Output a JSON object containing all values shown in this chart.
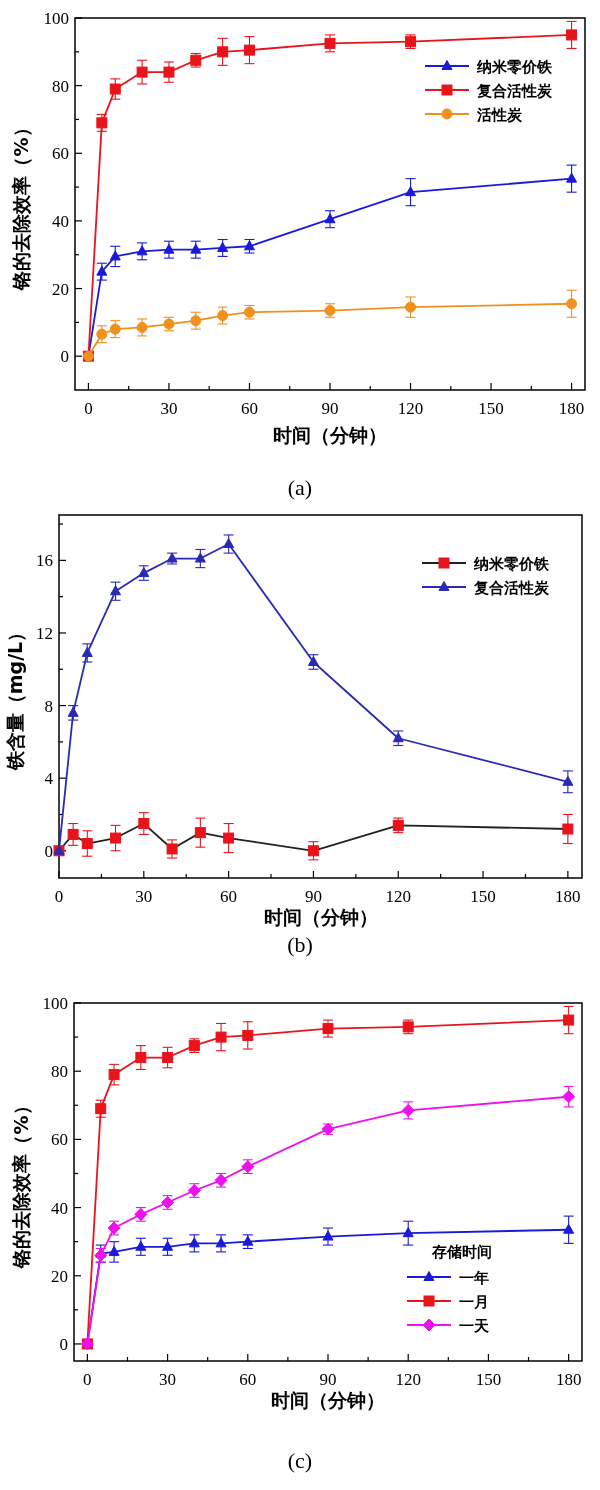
{
  "chart_data": [
    {
      "type": "line",
      "title": "(a)",
      "xlabel": "时间（分钟）",
      "ylabel": "铬的去除效率（%）",
      "x": [
        0,
        5,
        10,
        20,
        30,
        40,
        50,
        60,
        90,
        120,
        180
      ],
      "xlim": [
        -5,
        185
      ],
      "ylim": [
        -10,
        100
      ],
      "xticks": [
        0,
        {
          "value": 15,
          "label": null
        },
        30,
        {
          "value": 45,
          "label": null
        },
        60,
        {
          "value": 75,
          "label": null
        },
        90,
        {
          "value": 105,
          "label": null
        },
        120,
        {
          "value": 135,
          "label": null
        },
        150,
        {
          "value": 165,
          "label": null
        },
        180
      ],
      "yticks": [
        0,
        {
          "value": 10,
          "label": null
        },
        20,
        {
          "value": 30,
          "label": null
        },
        40,
        {
          "value": 50,
          "label": null
        },
        60,
        {
          "value": 70,
          "label": null
        },
        80,
        {
          "value": 90,
          "label": null
        },
        100
      ],
      "legend": "top right",
      "series": [
        {
          "name": "纳米零价铁",
          "color": "#1a1adb",
          "marker": "triangle",
          "values": [
            0,
            25,
            29.5,
            31,
            31.5,
            31.5,
            32,
            32.5,
            40.5,
            48.5,
            52.5
          ],
          "errors": [
            null,
            2.5,
            3,
            2.5,
            2.5,
            2.5,
            2.5,
            2,
            2.5,
            4,
            4
          ]
        },
        {
          "name": "复合活性炭",
          "color": "#e8141c",
          "marker": "square",
          "values": [
            0,
            69,
            79,
            84,
            84,
            87.5,
            90,
            90.5,
            92.5,
            93,
            95
          ],
          "errors": [
            null,
            2.5,
            3,
            3.5,
            3,
            2,
            4,
            4,
            2.5,
            2,
            4
          ]
        },
        {
          "name": "活性炭",
          "color": "#f0901e",
          "marker": "circle",
          "values": [
            0,
            6.5,
            8,
            8.5,
            9.5,
            10.5,
            12,
            13,
            13.5,
            14.5,
            15.5
          ],
          "errors": [
            null,
            2.5,
            2.5,
            2.5,
            2,
            2.5,
            2.5,
            2,
            2,
            3,
            4
          ]
        }
      ]
    },
    {
      "type": "line",
      "title": "(b)",
      "xlabel": "时间（分钟）",
      "ylabel": "铁含量（mg/L）",
      "x": [
        0,
        5,
        10,
        20,
        30,
        40,
        50,
        60,
        90,
        120,
        180
      ],
      "xlim": [
        0,
        185
      ],
      "ylim": [
        -1.5,
        18.5
      ],
      "xticks": [
        0,
        {
          "value": 15,
          "label": null
        },
        30,
        {
          "value": 45,
          "label": null
        },
        60,
        {
          "value": 75,
          "label": null
        },
        90,
        {
          "value": 105,
          "label": null
        },
        120,
        {
          "value": 135,
          "label": null
        },
        150,
        {
          "value": 165,
          "label": null
        },
        180
      ],
      "yticks": [
        0,
        {
          "value": 2,
          "label": null
        },
        4,
        {
          "value": 6,
          "label": null
        },
        8,
        {
          "value": 10,
          "label": null
        },
        12,
        {
          "value": 14,
          "label": null
        },
        16,
        {
          "value": 18,
          "label": null
        }
      ],
      "legend": "top right",
      "series": [
        {
          "name": "纳米零价铁",
          "color": "#222222",
          "colors": [
            "#e8141c",
            "#e8141c",
            "#e8141c",
            "#e8141c",
            "#e8141c",
            "#e8141c",
            "#e8141c",
            "#e8141c",
            "#e8141c",
            "#e8141c",
            "#e8141c"
          ],
          "marker": "square",
          "values": [
            0,
            0.9,
            0.4,
            0.7,
            1.5,
            0.1,
            1.0,
            0.7,
            0.0,
            1.4,
            1.2
          ],
          "errors": [
            null,
            0.6,
            0.7,
            0.7,
            0.6,
            0.5,
            0.8,
            0.8,
            0.5,
            0.4,
            0.8
          ]
        },
        {
          "name": "复合活性炭",
          "color": "#2a2ab5",
          "marker": "triangle",
          "values": [
            0,
            7.6,
            10.9,
            14.3,
            15.3,
            16.1,
            16.1,
            16.9,
            10.4,
            6.2,
            3.8
          ],
          "errors": [
            null,
            0.4,
            0.5,
            0.5,
            0.4,
            0.3,
            0.5,
            0.5,
            0.4,
            0.4,
            0.6
          ]
        }
      ]
    },
    {
      "type": "line",
      "title": "(c)",
      "xlabel": "时间（分钟）",
      "ylabel": "铬的去除效率（%）",
      "x": [
        0,
        5,
        10,
        20,
        30,
        40,
        50,
        60,
        90,
        120,
        180
      ],
      "xlim": [
        -5,
        185
      ],
      "ylim": [
        -5,
        100
      ],
      "xticks": [
        0,
        {
          "value": 15,
          "label": null
        },
        30,
        {
          "value": 45,
          "label": null
        },
        60,
        {
          "value": 75,
          "label": null
        },
        90,
        {
          "value": 105,
          "label": null
        },
        120,
        {
          "value": 135,
          "label": null
        },
        150,
        {
          "value": 165,
          "label": null
        },
        180
      ],
      "yticks": [
        0,
        {
          "value": 10,
          "label": null
        },
        20,
        {
          "value": 30,
          "label": null
        },
        40,
        {
          "value": 50,
          "label": null
        },
        60,
        {
          "value": 70,
          "label": null
        },
        80,
        {
          "value": 90,
          "label": null
        },
        100
      ],
      "legend": "bottom right",
      "legend_title": "存储时间",
      "series": [
        {
          "name": "一年",
          "color": "#1a1adb",
          "marker": "triangle",
          "values": [
            0,
            26.5,
            27,
            28.5,
            28.5,
            29.5,
            29.5,
            30,
            31.5,
            32.5,
            33.5
          ],
          "errors": [
            null,
            2.5,
            3,
            2.5,
            2.5,
            2.5,
            2.5,
            2,
            2.5,
            3.5,
            4
          ]
        },
        {
          "name": "一月",
          "color": "#e8141c",
          "marker": "square",
          "values": [
            0,
            69,
            79,
            84,
            84,
            87.5,
            90,
            90.5,
            92.5,
            93,
            95
          ],
          "errors": [
            null,
            2.5,
            3,
            3.5,
            3,
            2,
            4,
            4,
            2.5,
            2,
            4
          ]
        },
        {
          "name": "一天",
          "color": "#ee11ee",
          "marker": "diamond",
          "values": [
            0,
            26,
            34,
            38,
            41.5,
            45,
            48,
            52,
            63,
            68.5,
            72.5
          ],
          "errors": [
            null,
            2,
            2,
            2,
            2,
            2,
            2,
            2,
            1.5,
            2.5,
            3
          ]
        }
      ]
    }
  ]
}
